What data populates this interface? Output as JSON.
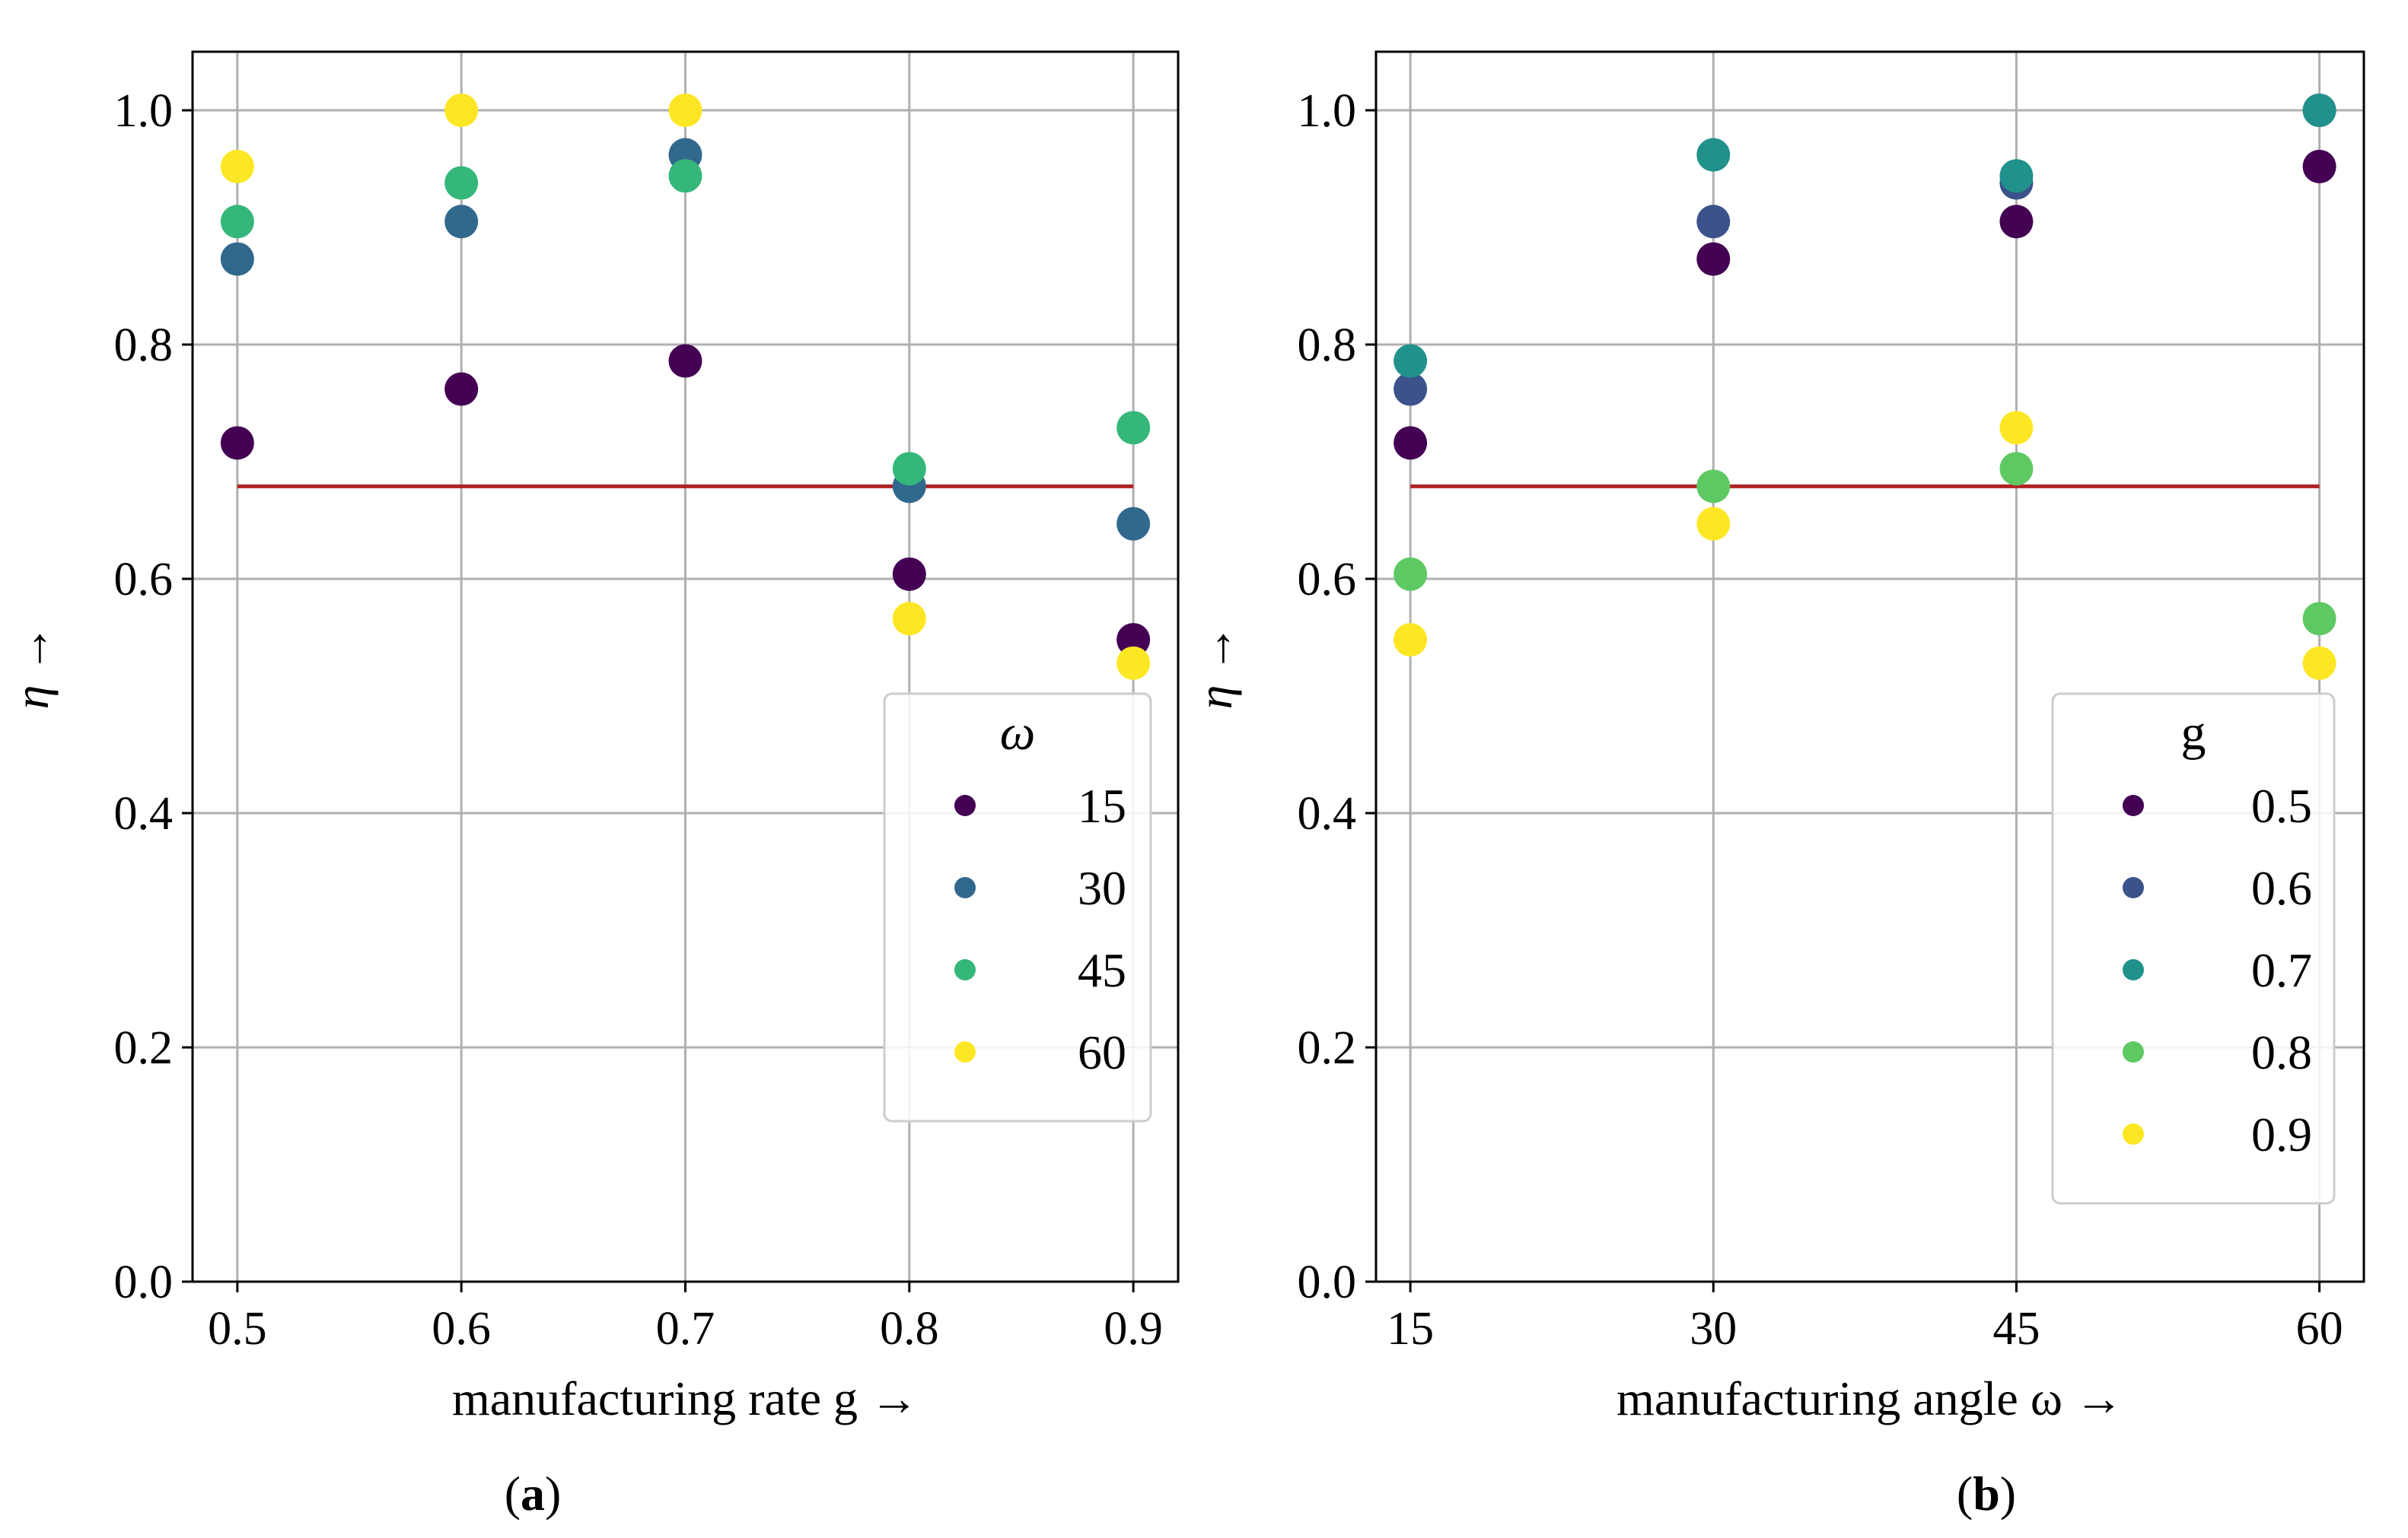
{
  "chart_data": [
    {
      "type": "scatter",
      "panel_label": "a",
      "xlabel": "manufacturing rate g  →",
      "ylabel": "η →",
      "x_ticks": [
        "0.5",
        "0.6",
        "0.7",
        "0.8",
        "0.9"
      ],
      "x_values": [
        0.5,
        0.6,
        0.7,
        0.8,
        0.9
      ],
      "y_ticks": [
        "0.0",
        "0.2",
        "0.4",
        "0.6",
        "0.8",
        "1.0"
      ],
      "xlim": [
        0.48,
        0.92
      ],
      "ylim": [
        0.0,
        1.05
      ],
      "grid": true,
      "threshold": {
        "value": 0.679,
        "x_range": [
          0.5,
          0.9
        ],
        "color": "#b22222"
      },
      "legend": {
        "title": "ω",
        "title_italic": true,
        "position": "lower-right"
      },
      "series": [
        {
          "name": "15",
          "color": "#440154",
          "values": [
            0.716,
            0.762,
            0.786,
            0.604,
            0.548
          ]
        },
        {
          "name": "30",
          "color": "#31688e",
          "values": [
            0.873,
            0.905,
            0.962,
            0.679,
            0.647
          ]
        },
        {
          "name": "45",
          "color": "#35b779",
          "values": [
            0.905,
            0.938,
            0.944,
            0.694,
            0.729
          ]
        },
        {
          "name": "60",
          "color": "#fde725",
          "values": [
            0.952,
            1.0,
            1.0,
            0.566,
            0.528
          ]
        }
      ]
    },
    {
      "type": "scatter",
      "panel_label": "b",
      "xlabel": "manufacturing angle ω  →",
      "ylabel": "η →",
      "x_ticks": [
        "15",
        "30",
        "45",
        "60"
      ],
      "x_values": [
        15,
        30,
        45,
        60
      ],
      "y_ticks": [
        "0.0",
        "0.2",
        "0.4",
        "0.6",
        "0.8",
        "1.0"
      ],
      "xlim": [
        13.3,
        62.2
      ],
      "ylim": [
        0.0,
        1.05
      ],
      "grid": true,
      "threshold": {
        "value": 0.679,
        "x_range": [
          15,
          60
        ],
        "color": "#b22222"
      },
      "legend": {
        "title": "g",
        "title_italic": false,
        "position": "lower-right"
      },
      "series": [
        {
          "name": "0.5",
          "color": "#440154",
          "values": [
            0.716,
            0.873,
            0.905,
            0.952
          ]
        },
        {
          "name": "0.6",
          "color": "#3b528b",
          "values": [
            0.762,
            0.905,
            0.938,
            1.0
          ]
        },
        {
          "name": "0.7",
          "color": "#21918c",
          "values": [
            0.786,
            0.962,
            0.944,
            1.0
          ]
        },
        {
          "name": "0.8",
          "color": "#5ec962",
          "values": [
            0.604,
            0.679,
            0.694,
            0.566
          ]
        },
        {
          "name": "0.9",
          "color": "#fde725",
          "values": [
            0.548,
            0.647,
            0.729,
            0.528
          ]
        }
      ]
    }
  ]
}
